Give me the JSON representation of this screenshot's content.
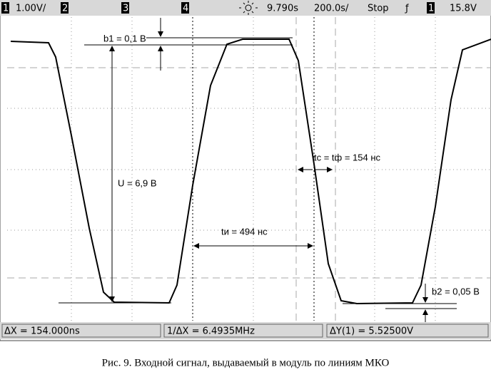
{
  "status_bar": {
    "channel1": "1",
    "scale": "1.00V/",
    "channel2": "2",
    "channel3": "3",
    "channel4": "4",
    "delay": "9.790s",
    "timebase": "200.0s/",
    "mode": "Stop",
    "trigger_slope": "ƒ",
    "trigger_channel": "1",
    "trigger_level": "15.8V"
  },
  "annotations": {
    "b1": "b1 = 0,1 В",
    "u": "U = 6,9 В",
    "ti": "tи = 494 нс",
    "tc": "tc = tф = 154 нс",
    "b2": "b2 = 0,05 В"
  },
  "measurements": {
    "dx": "ΔX = 154.000ns",
    "inv_dx": "1/ΔX = 6.4935MHz",
    "dy": "ΔY(1) = 5.52500V"
  },
  "caption": "Рис. 9. Входной сигнал, выдаваемый в модуль по линиям МКО"
}
